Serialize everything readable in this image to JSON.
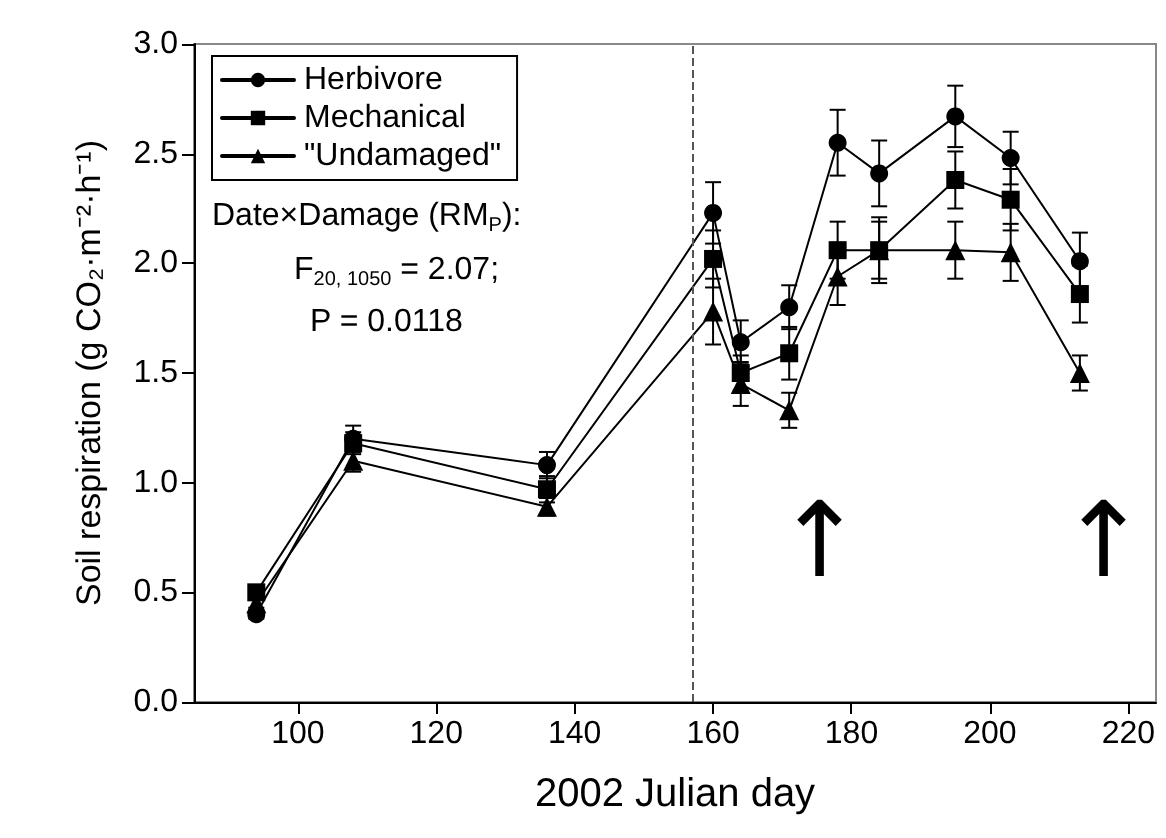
{
  "chart_data": {
    "type": "line",
    "xlabel": "2002 Julian day",
    "ylabel": "Soil respiration (g CO₂·m⁻²·h⁻¹)",
    "x": [
      94,
      108,
      136,
      160,
      164,
      171,
      178,
      184,
      195,
      203,
      213
    ],
    "xlim": [
      85,
      224
    ],
    "xticks": [
      100,
      120,
      140,
      160,
      180,
      200,
      220
    ],
    "ylim": [
      0,
      3
    ],
    "yticks": [
      {
        "value": 0,
        "label": "0.0"
      },
      {
        "value": 0.5,
        "label": "0.5"
      },
      {
        "value": 1,
        "label": "1.0"
      },
      {
        "value": 1.5,
        "label": "1.5"
      },
      {
        "value": 2,
        "label": "2.0"
      },
      {
        "value": 2.5,
        "label": "2.5"
      },
      {
        "value": 3,
        "label": "3.0"
      }
    ],
    "series": [
      {
        "name": "Herbivore",
        "color": "#000000",
        "marker": "circle",
        "values": [
          0.4,
          1.2,
          1.08,
          2.23,
          1.64,
          1.8,
          2.55,
          2.41,
          2.67,
          2.48,
          2.01
        ],
        "errors": [
          0.02,
          0.06,
          0.06,
          0.14,
          0.1,
          0.1,
          0.15,
          0.15,
          0.14,
          0.12,
          0.13
        ]
      },
      {
        "name": "Mechanical",
        "color": "#000000",
        "marker": "square",
        "values": [
          0.5,
          1.18,
          0.97,
          2.02,
          1.5,
          1.59,
          2.06,
          2.06,
          2.38,
          2.29,
          1.86
        ],
        "errors": [
          0.02,
          0.05,
          0.06,
          0.13,
          0.08,
          0.12,
          0.13,
          0.15,
          0.13,
          0.14,
          0.13
        ]
      },
      {
        "name": "\"Undamaged\"",
        "color": "#000000",
        "marker": "triangle",
        "values": [
          0.45,
          1.1,
          0.89,
          1.78,
          1.45,
          1.33,
          1.94,
          2.06,
          2.06,
          2.05,
          1.5
        ],
        "errors": [
          0.02,
          0.05,
          0.04,
          0.15,
          0.1,
          0.08,
          0.13,
          0.13,
          0.13,
          0.13,
          0.08
        ]
      }
    ],
    "ref_lines": [
      {
        "axis": "x",
        "value": 157,
        "color": "#555555",
        "line_style": "dashed"
      }
    ],
    "annotations": [
      "Date×Damage (RM$_{P}$):",
      "F$_{20, 1050}$ = 2.07;",
      "P = 0.0118",
      "↑",
      "↑"
    ],
    "grid": false,
    "legend": "top left",
    "line_style": "solid"
  }
}
